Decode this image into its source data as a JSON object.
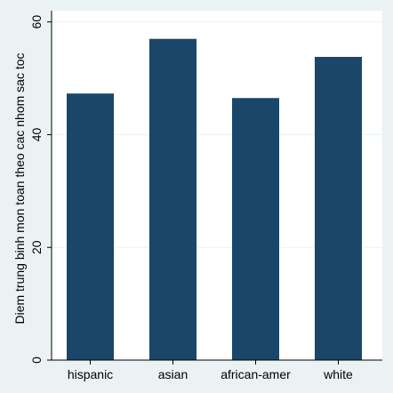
{
  "chart_data": {
    "type": "bar",
    "title": "",
    "xlabel": "",
    "ylabel": "Diem trung binh mon toan theo cac nhom sac toc",
    "categories": [
      "hispanic",
      "asian",
      "african-amer",
      "white"
    ],
    "values": [
      47.3,
      57.0,
      46.5,
      53.8
    ],
    "ylim": [
      0,
      62
    ],
    "yticks": [
      0,
      20,
      40,
      60
    ],
    "grid": true,
    "colors": {
      "bar": "#1a4669",
      "plot_background": "#ffffff",
      "outer_background": "#eaf2f3",
      "grid": "#eaf2f3"
    }
  }
}
